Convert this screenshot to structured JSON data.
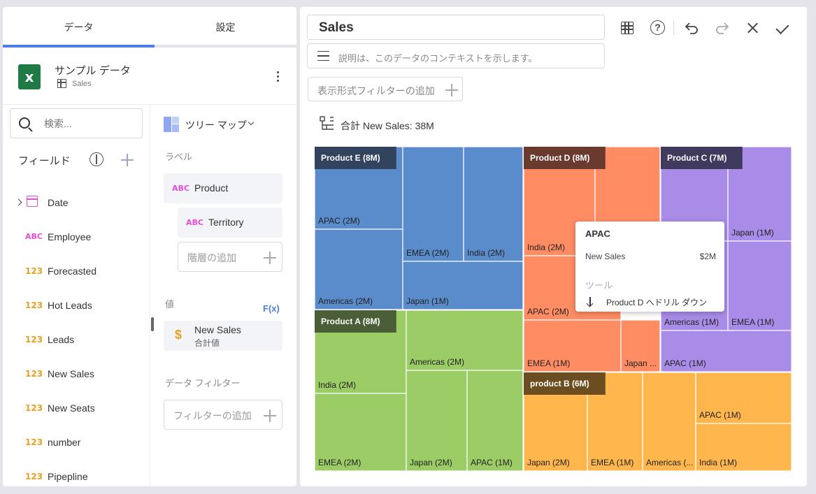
{
  "tabs": {
    "data": "データ",
    "settings": "設定"
  },
  "source": {
    "name": "サンプル データ",
    "sheet": "Sales"
  },
  "search": {
    "placeholder": "検索..."
  },
  "fields": {
    "header": "フィールド",
    "items": [
      {
        "type": "date",
        "label": "Date"
      },
      {
        "type": "ABC",
        "label": "Employee"
      },
      {
        "type": "123",
        "label": "Forecasted"
      },
      {
        "type": "123",
        "label": "Hot Leads"
      },
      {
        "type": "123",
        "label": "Leads"
      },
      {
        "type": "123",
        "label": "New Sales"
      },
      {
        "type": "123",
        "label": "New Seats"
      },
      {
        "type": "123",
        "label": "number"
      },
      {
        "type": "123",
        "label": "Pipepline"
      }
    ]
  },
  "config": {
    "viz_type": "ツリー マップ",
    "labels_title": "ラベル",
    "label_product": {
      "type": "ABC",
      "label": "Product"
    },
    "label_territory": {
      "type": "ABC",
      "label": "Territory"
    },
    "add_hierarchy": "階層の追加",
    "values_title": "値",
    "fx": "F(x)",
    "value": {
      "label": "New Sales",
      "agg": "合計値"
    },
    "data_filters_title": "データ フィルター",
    "add_filter": "フィルターの追加"
  },
  "editor": {
    "title": "Sales",
    "description_placeholder": "説明は、このデータのコンテキストを示します。",
    "add_visual_filter": "表示形式フィルターの追加",
    "summary": "合計 New Sales: 38M"
  },
  "colors": {
    "accent": "#4d7de6",
    "blue": "#5a8bcb",
    "orange": "#ff8c63",
    "purple": "#a98ce8",
    "green": "#9ccc65",
    "yellow": "#ffb64d"
  },
  "chart_data": {
    "type": "treemap",
    "title": "",
    "groups": [
      {
        "name": "Product E (8M)",
        "color": "#5a8bcb",
        "header": "#32435e",
        "cells": [
          {
            "label": "APAC (2M)",
            "value": 2
          },
          {
            "label": "Americas (2M)",
            "value": 2
          },
          {
            "label": "EMEA (2M)",
            "value": 2
          },
          {
            "label": "India (2M)",
            "value": 2
          },
          {
            "label": "Japan (1M)",
            "value": 1
          }
        ]
      },
      {
        "name": "Product A (8M)",
        "color": "#9ccc65",
        "header": "#4a5e38",
        "cells": [
          {
            "label": "India (2M)",
            "value": 2
          },
          {
            "label": "EMEA (2M)",
            "value": 2
          },
          {
            "label": "Americas (2M)",
            "value": 2
          },
          {
            "label": "Japan (2M)",
            "value": 2
          },
          {
            "label": "APAC (1M)",
            "value": 1
          }
        ]
      },
      {
        "name": "Product D (8M)",
        "color": "#ff8c63",
        "header": "#6b3a2f",
        "cells": [
          {
            "label": "India (2M)",
            "value": 2
          },
          {
            "label": "",
            "value": 2
          },
          {
            "label": "APAC (2M)",
            "value": 2
          },
          {
            "label": "EMEA (1M)",
            "value": 1
          },
          {
            "label": "Japan ...",
            "value": 1
          }
        ]
      },
      {
        "name": "Product C (7M)",
        "color": "#a98ce8",
        "header": "#3f3a5e",
        "cells": [
          {
            "label": "",
            "value": 2
          },
          {
            "label": "Japan (1M)",
            "value": 1
          },
          {
            "label": "Americas (1M)",
            "value": 1
          },
          {
            "label": "EMEA (1M)",
            "value": 1
          },
          {
            "label": "APAC (1M)",
            "value": 1
          }
        ]
      },
      {
        "name": "product B (6M)",
        "color": "#ffb64d",
        "header": "#6b4d1f",
        "cells": [
          {
            "label": "Japan (2M)",
            "value": 2
          },
          {
            "label": "EMEA (1M)",
            "value": 1
          },
          {
            "label": "Americas (...",
            "value": 1
          },
          {
            "label": "APAC (1M)",
            "value": 1
          },
          {
            "label": "India (1M)",
            "value": 1
          }
        ]
      }
    ]
  },
  "tooltip": {
    "title": "APAC",
    "metric": "New Sales",
    "value": "$2M",
    "section": "ツール",
    "action": "Product D へドリル ダウン"
  }
}
